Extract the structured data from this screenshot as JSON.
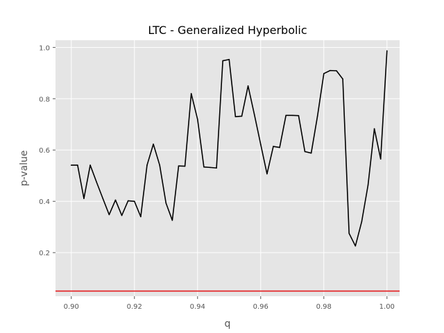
{
  "chart_data": {
    "type": "line",
    "title": "LTC - Generalized Hyperbolic",
    "xlabel": "q",
    "ylabel": "p-value",
    "xlim": [
      0.895,
      1.004
    ],
    "ylim": [
      0.03,
      1.028
    ],
    "xticks": [
      0.9,
      0.92,
      0.94,
      0.96,
      0.98,
      1.0
    ],
    "xtick_labels": [
      "0.90",
      "0.92",
      "0.94",
      "0.96",
      "0.98",
      "1.00"
    ],
    "yticks": [
      0.2,
      0.4,
      0.6,
      0.8,
      1.0
    ],
    "ytick_labels": [
      "0.2",
      "0.4",
      "0.6",
      "0.8",
      "1.0"
    ],
    "grid": true,
    "background": "#e5e5e5",
    "series": [
      {
        "color": "#000000",
        "x": [
          0.9,
          0.902,
          0.904,
          0.906,
          0.908,
          0.91,
          0.912,
          0.914,
          0.916,
          0.918,
          0.92,
          0.922,
          0.924,
          0.926,
          0.928,
          0.93,
          0.932,
          0.934,
          0.936,
          0.938,
          0.94,
          0.942,
          0.944,
          0.946,
          0.948,
          0.95,
          0.952,
          0.954,
          0.956,
          0.958,
          0.96,
          0.962,
          0.964,
          0.966,
          0.968,
          0.97,
          0.972,
          0.974,
          0.976,
          0.978,
          0.98,
          0.982,
          0.984,
          0.986,
          0.988,
          0.99,
          0.992,
          0.994,
          0.996,
          0.998,
          1.0
        ],
        "y": [
          0.541,
          0.541,
          0.411,
          0.541,
          0.475,
          0.411,
          0.348,
          0.405,
          0.345,
          0.402,
          0.4,
          0.34,
          0.541,
          0.623,
          0.541,
          0.393,
          0.326,
          0.538,
          0.537,
          0.82,
          0.72,
          0.534,
          0.532,
          0.53,
          0.948,
          0.953,
          0.73,
          0.732,
          0.85,
          0.738,
          0.622,
          0.507,
          0.614,
          0.61,
          0.735,
          0.735,
          0.734,
          0.594,
          0.588,
          0.733,
          0.898,
          0.91,
          0.909,
          0.877,
          0.275,
          0.226,
          0.321,
          0.463,
          0.683,
          0.565,
          0.987
        ]
      }
    ],
    "hlines": [
      {
        "y": 0.05,
        "color": "#e41a1c"
      }
    ]
  }
}
